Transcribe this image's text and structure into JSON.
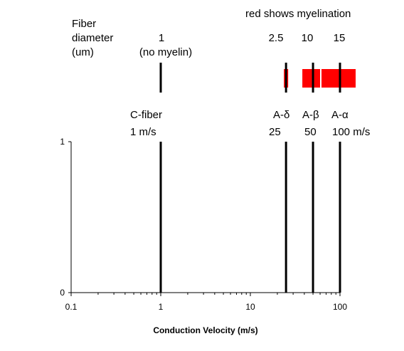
{
  "chart_data": {
    "type": "bar",
    "xscale": "log",
    "xlim": [
      0.1,
      100
    ],
    "ylim": [
      0,
      1
    ],
    "xlabel": "Conduction Velocity (m/s)",
    "ylabel": "",
    "title": "",
    "grid": false,
    "x_tick_labels": [
      "0.1",
      "1",
      "10",
      "100"
    ],
    "y_tick_labels": [
      "0",
      "1"
    ],
    "bars": [
      {
        "x": 1,
        "value": 1,
        "type_label": "C-fiber",
        "velocity_label": "1 m/s"
      },
      {
        "x": 25,
        "value": 1,
        "type_label": "A-δ",
        "velocity_label": "25"
      },
      {
        "x": 50,
        "value": 1,
        "type_label": "A-β",
        "velocity_label": "50"
      },
      {
        "x": 100,
        "value": 1,
        "type_label": "A-α",
        "velocity_label": "100 m/s"
      }
    ],
    "diameter": {
      "heading": [
        "Fiber",
        "diameter",
        "(um)"
      ],
      "note": "red shows myelination",
      "note_color": "#ff0000",
      "entries": [
        {
          "x": 1,
          "label": "1",
          "sublabel": "(no myelin)",
          "myelinated": false
        },
        {
          "x": 25,
          "label": "2.5",
          "myelinated": true
        },
        {
          "x": 50,
          "label": "10",
          "myelinated": true
        },
        {
          "x": 100,
          "label": "15",
          "myelinated": true
        }
      ]
    },
    "colors": {
      "bar": "#000000",
      "myelin": "#ff0000"
    }
  }
}
